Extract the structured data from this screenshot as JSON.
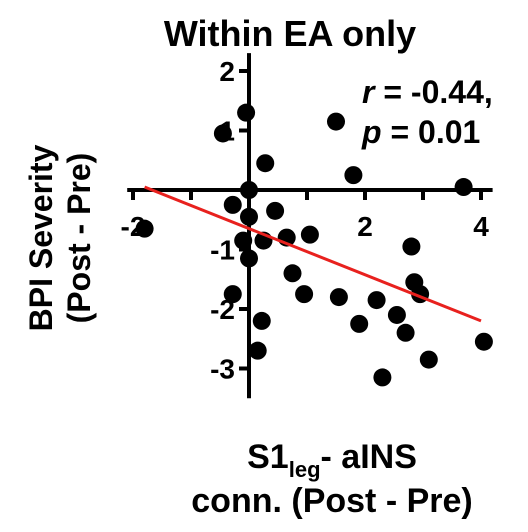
{
  "chart_data": {
    "type": "scatter",
    "title": "Within EA only",
    "ylabel_line1": "BPI Severity",
    "ylabel_line2": "(Post - Pre)",
    "xlabel_main": "S1",
    "xlabel_sub": "leg",
    "xlabel_rest": "- aINS",
    "xlabel_line2": "conn. (Post - Pre)",
    "stat_r_symbol": "r",
    "stat_r_value": " = -0.44,",
    "stat_p_symbol": "p",
    "stat_p_value": " = 0.01",
    "xlim": [
      -2.1,
      4.2
    ],
    "ylim": [
      -3.5,
      2.3
    ],
    "xticks": [
      -2,
      2,
      4
    ],
    "yticks": [
      2,
      1,
      -1,
      -2,
      -3
    ],
    "grid": false,
    "colors": {
      "points": "#000000",
      "fit_line": "#e8211e"
    },
    "fit_line": {
      "x": [
        -1.8,
        4.0
      ],
      "y": [
        0.05,
        -2.2
      ]
    },
    "points": [
      {
        "x": -1.8,
        "y": -0.65
      },
      {
        "x": -0.45,
        "y": 0.95
      },
      {
        "x": -0.05,
        "y": 1.3
      },
      {
        "x": -0.28,
        "y": -0.25
      },
      {
        "x": -0.28,
        "y": -1.75
      },
      {
        "x": -0.1,
        "y": -0.85
      },
      {
        "x": 0.0,
        "y": 0.0
      },
      {
        "x": 0.0,
        "y": -0.45
      },
      {
        "x": 0.0,
        "y": -1.15
      },
      {
        "x": 0.15,
        "y": -2.7
      },
      {
        "x": 0.22,
        "y": -2.2
      },
      {
        "x": 0.25,
        "y": -0.85
      },
      {
        "x": 0.28,
        "y": 0.45
      },
      {
        "x": 0.45,
        "y": -0.35
      },
      {
        "x": 0.65,
        "y": -0.8
      },
      {
        "x": 0.75,
        "y": -1.4
      },
      {
        "x": 0.95,
        "y": -1.75
      },
      {
        "x": 1.05,
        "y": -0.75
      },
      {
        "x": 1.5,
        "y": 1.15
      },
      {
        "x": 1.55,
        "y": -1.8
      },
      {
        "x": 1.8,
        "y": 0.25
      },
      {
        "x": 1.9,
        "y": -2.25
      },
      {
        "x": 2.2,
        "y": -1.85
      },
      {
        "x": 2.3,
        "y": -3.15
      },
      {
        "x": 2.55,
        "y": -2.1
      },
      {
        "x": 2.7,
        "y": -2.4
      },
      {
        "x": 2.8,
        "y": -0.95
      },
      {
        "x": 2.85,
        "y": -1.55
      },
      {
        "x": 2.95,
        "y": -1.75
      },
      {
        "x": 3.1,
        "y": -2.85
      },
      {
        "x": 3.7,
        "y": 0.05
      },
      {
        "x": 4.05,
        "y": -2.55
      }
    ]
  }
}
